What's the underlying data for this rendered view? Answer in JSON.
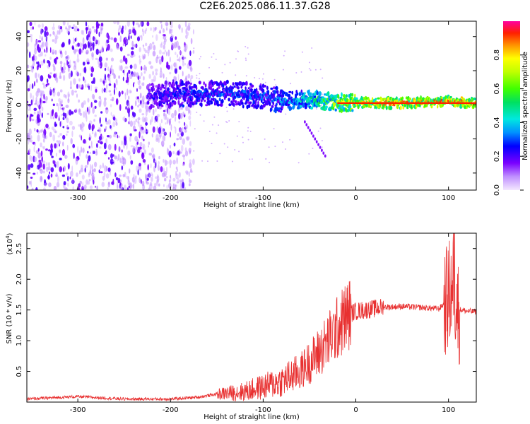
{
  "title": "C2E6.2025.086.11.37.G28",
  "chart_data": [
    {
      "type": "heatmap",
      "xlabel": "Height of straight line (km)",
      "ylabel": "Frequency (Hz)",
      "xlim": [
        -355,
        130
      ],
      "ylim": [
        -50,
        49
      ],
      "xticks": [
        -300,
        -200,
        -100,
        0,
        100
      ],
      "yticks": [
        -40,
        -20,
        0,
        20,
        40
      ],
      "colorbar": {
        "label": "Normalized spectral amplitude",
        "range": [
          0.0,
          1.0
        ],
        "ticks": [
          0.0,
          0.2,
          0.4,
          0.6,
          0.8
        ]
      },
      "features": {
        "noise_region_x": [
          -355,
          -175
        ],
        "signal_ridge": {
          "x": [
            -225,
            -200,
            -150,
            -100,
            -80,
            -60,
            -40,
            -20,
            0,
            50,
            100,
            130
          ],
          "center_freq": [
            5,
            6,
            7,
            5,
            2,
            3,
            3,
            1,
            1,
            1,
            2,
            1
          ],
          "amplitude": [
            0.2,
            0.28,
            0.3,
            0.3,
            0.35,
            0.45,
            0.55,
            0.7,
            0.8,
            0.9,
            0.9,
            0.85
          ]
        },
        "streak": {
          "x": [
            -55,
            -33
          ],
          "freq": [
            -10,
            -30
          ]
        }
      },
      "grid": false
    },
    {
      "type": "line",
      "xlabel": "Height of straight line (km)",
      "ylabel": "SNR (10 * v/v)",
      "y_multiplier_label": "(x10",
      "y_multiplier_exp": "4",
      "y_multiplier_close": ")",
      "xlim": [
        -355,
        130
      ],
      "ylim": [
        0,
        27500
      ],
      "xticks": [
        -300,
        -200,
        -100,
        0,
        100
      ],
      "yticks": [
        5000,
        10000,
        15000,
        20000,
        25000
      ],
      "ytick_labels": [
        "0.5",
        "1.0",
        "1.5",
        "2.0",
        "2.5"
      ],
      "color": "#e83030",
      "series": [
        {
          "x": [
            -355,
            -300,
            -250,
            -200,
            -170,
            -150,
            -120,
            -100,
            -80,
            -60,
            -50,
            -40,
            -30,
            -20,
            -15,
            -10,
            -5,
            0,
            10,
            20,
            30,
            40,
            50,
            60,
            70,
            80,
            90,
            95,
            100,
            105,
            110,
            115,
            120,
            130
          ],
          "y": [
            500,
            900,
            500,
            500,
            800,
            1300,
            1700,
            2500,
            3400,
            5000,
            6500,
            8000,
            10000,
            12000,
            13000,
            14000,
            14500,
            14800,
            15000,
            15200,
            15500,
            15500,
            15600,
            15500,
            15400,
            15300,
            15200,
            16000,
            17000,
            20000,
            15000,
            15000,
            14800,
            14700
          ]
        }
      ],
      "grid": false
    }
  ]
}
